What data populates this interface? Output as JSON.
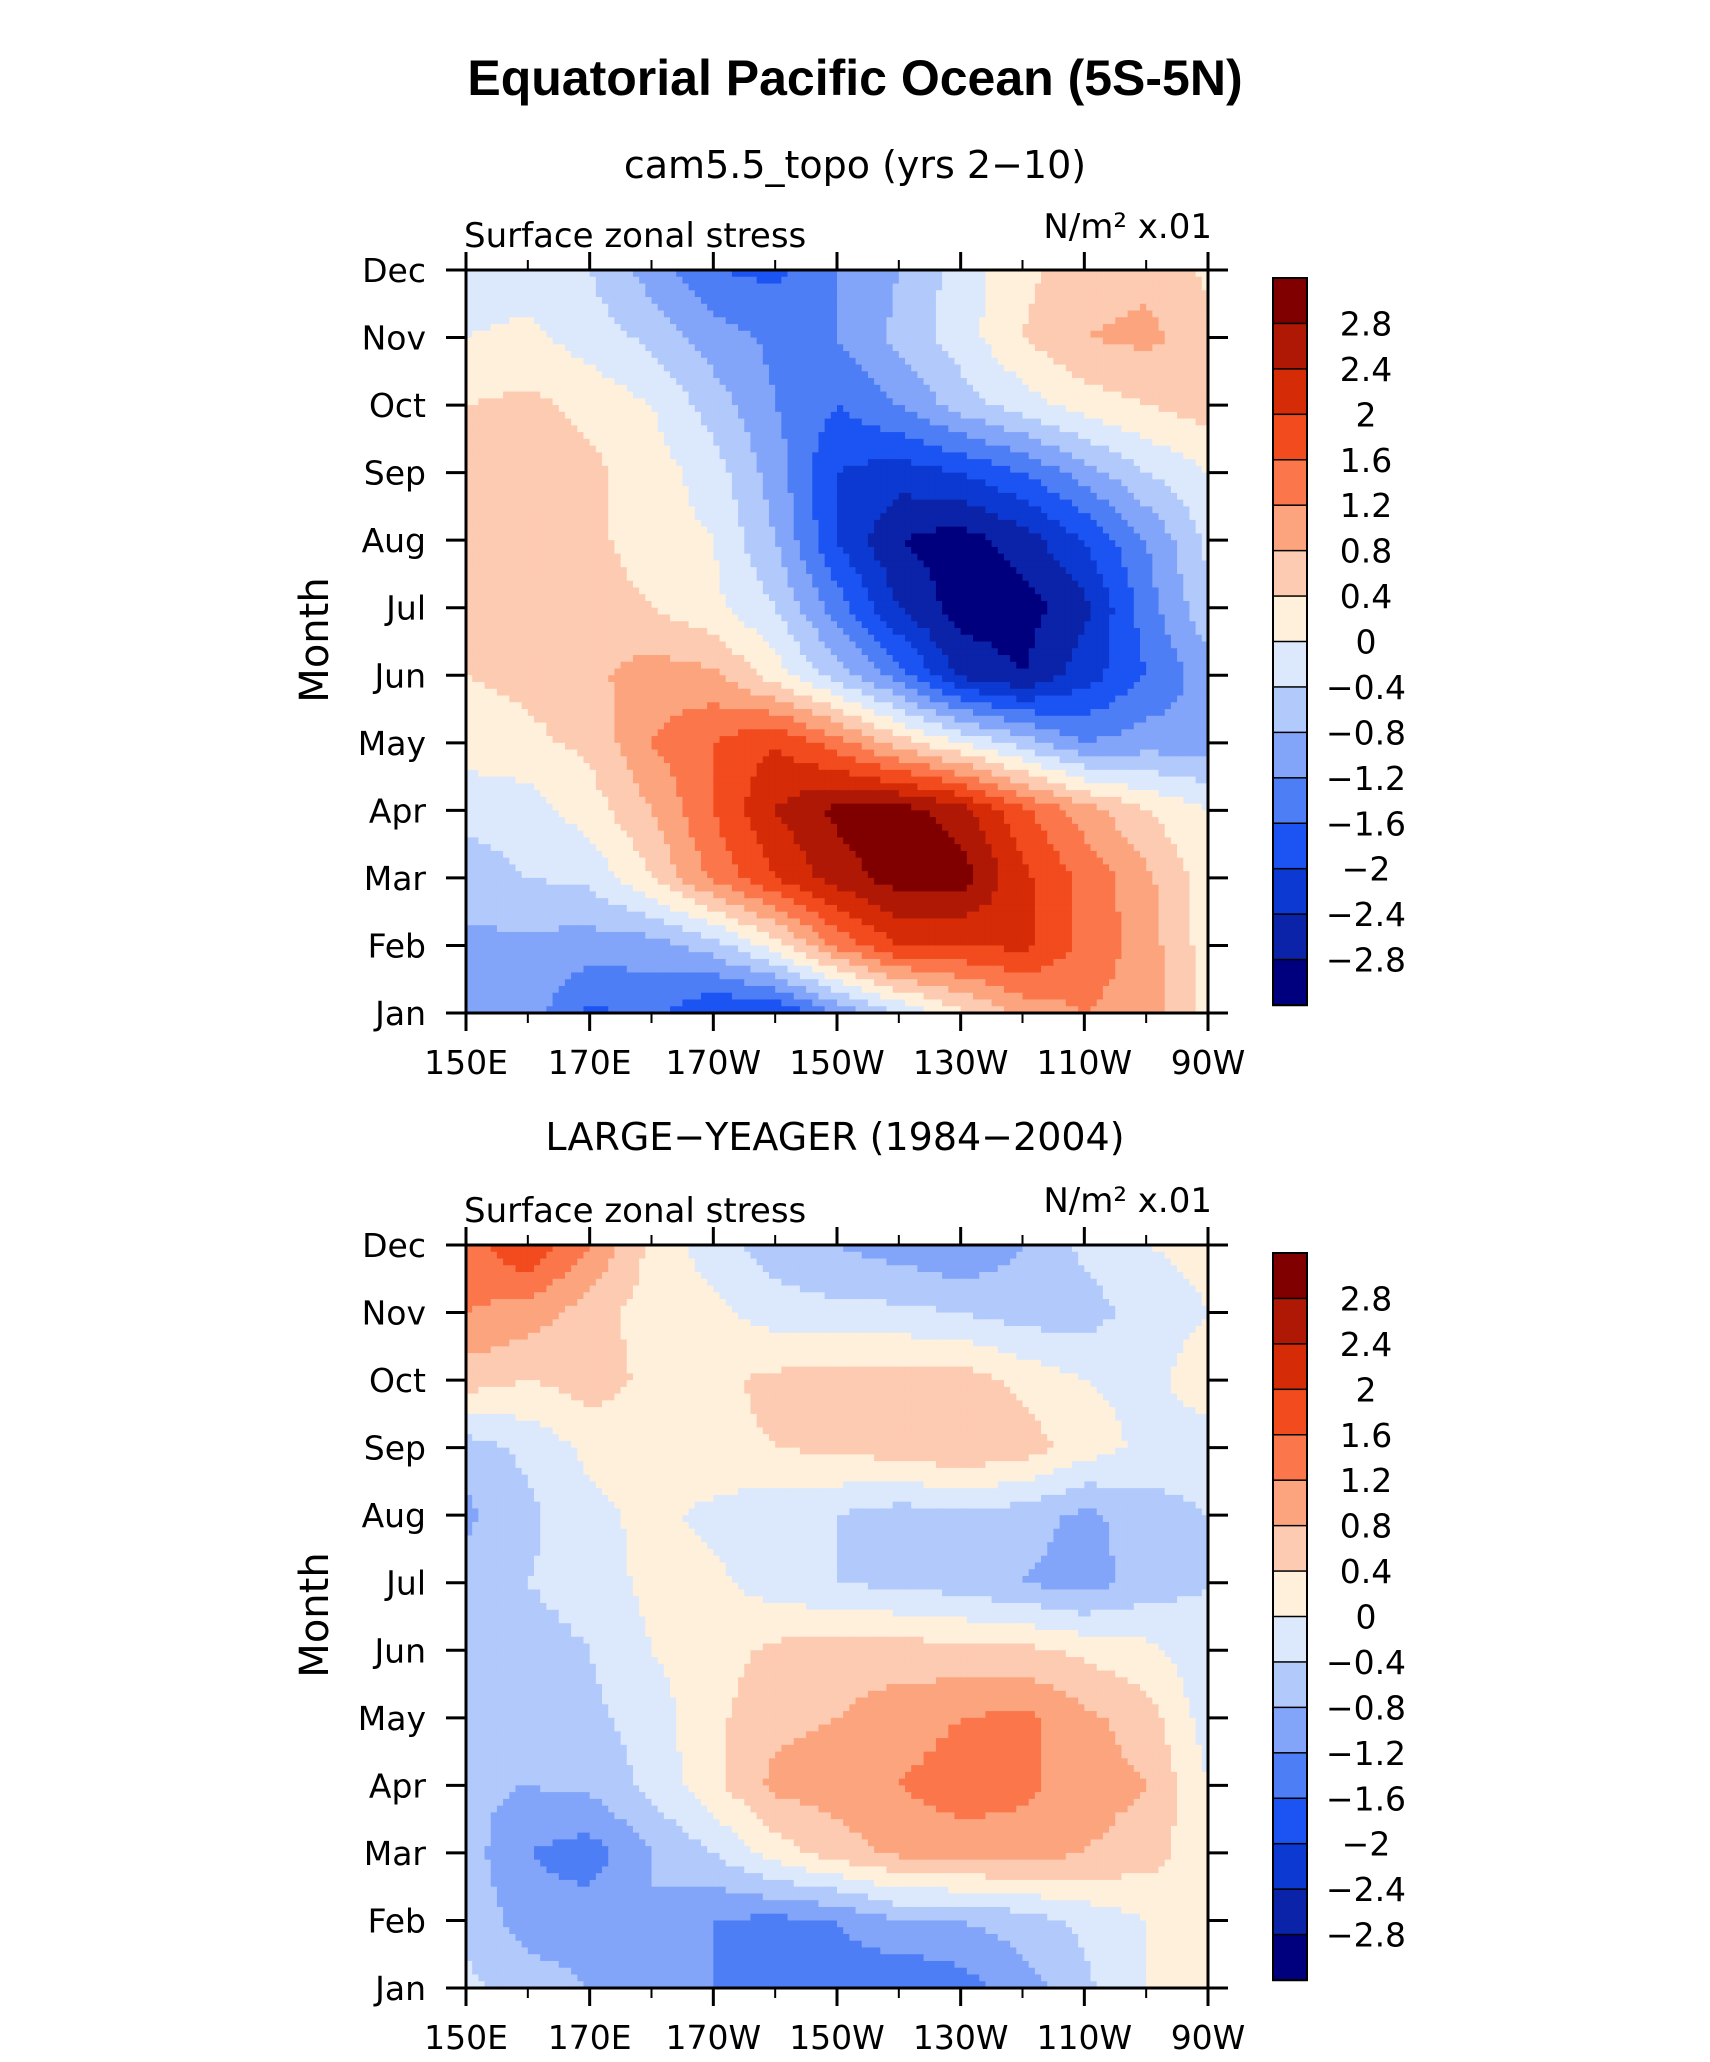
{
  "figure_title": "Equatorial Pacific Ocean (5S-5N)",
  "colorbar": {
    "levels": [
      -2.8,
      -2.4,
      -2,
      -1.6,
      -1.2,
      -0.8,
      -0.4,
      0,
      0.4,
      0.8,
      1.2,
      1.6,
      2,
      2.4,
      2.8
    ],
    "labels": [
      "2.8",
      "2.4",
      "2",
      "1.6",
      "1.2",
      "0.8",
      "0.4",
      "0",
      "−0.4",
      "−0.8",
      "−1.2",
      "−1.6",
      "−2",
      "−2.4",
      "−2.8"
    ],
    "colors": [
      "#00007f",
      "#0a23a8",
      "#0c39d2",
      "#1b54f3",
      "#4e7ef6",
      "#82a5fa",
      "#b2c9fc",
      "#dce9fd",
      "#fff0dc",
      "#fdcbb1",
      "#fca47d",
      "#fb774b",
      "#f24b1e",
      "#d62b07",
      "#b01806",
      "#800000"
    ]
  },
  "chart_data": [
    {
      "type": "heatmap",
      "title": "cam5.5_topo (yrs 2−10)",
      "left_label": "Surface zonal stress",
      "units": "N/m² x.01",
      "ylabel": "Month",
      "xlabel": "",
      "x_ticks": [
        "150E",
        "170E",
        "170W",
        "150W",
        "130W",
        "110W",
        "90W"
      ],
      "y_ticks": [
        "Jan",
        "Feb",
        "Mar",
        "Apr",
        "May",
        "Jun",
        "Jul",
        "Aug",
        "Sep",
        "Oct",
        "Nov",
        "Dec"
      ],
      "x_range_deg_east": [
        150,
        270
      ],
      "x_values_deg_east": [
        150,
        160,
        170,
        180,
        190,
        200,
        210,
        220,
        230,
        240,
        250,
        260,
        270
      ],
      "y_values": [
        "Jan",
        "Feb",
        "Mar",
        "Apr",
        "May",
        "Jun",
        "Jul",
        "Aug",
        "Sep",
        "Oct",
        "Nov",
        "Dec"
      ],
      "z": [
        [
          -1.0,
          -1.0,
          -1.7,
          -1.5,
          -2.0,
          -2.0,
          -1.2,
          -0.4,
          0.3,
          0.9,
          1.2,
          1.0,
          0.2
        ],
        [
          -0.9,
          -0.9,
          -1.0,
          -1.0,
          -0.6,
          0.2,
          1.3,
          2.0,
          2.0,
          2.1,
          1.5,
          1.0,
          0.2
        ],
        [
          -0.6,
          -0.4,
          -0.3,
          0.4,
          1.3,
          2.0,
          2.6,
          3.0,
          3.0,
          2.1,
          1.5,
          0.9,
          0.2
        ],
        [
          -0.3,
          -0.2,
          0.2,
          0.8,
          1.6,
          2.4,
          2.9,
          3.0,
          2.6,
          1.7,
          1.0,
          0.4,
          0.0
        ],
        [
          0.2,
          0.3,
          0.5,
          1.2,
          1.6,
          2.0,
          1.4,
          0.6,
          0.0,
          -0.6,
          -1.2,
          -1.0,
          -1.0
        ],
        [
          0.4,
          0.5,
          0.7,
          1.0,
          0.9,
          0.2,
          -0.6,
          -1.4,
          -2.5,
          -2.8,
          -2.2,
          -1.6,
          -1.0
        ],
        [
          0.5,
          0.6,
          0.6,
          0.4,
          0.1,
          -0.4,
          -1.4,
          -2.4,
          -3.0,
          -3.0,
          -2.5,
          -1.4,
          -0.5
        ],
        [
          0.5,
          0.6,
          0.5,
          0.2,
          0.0,
          -0.8,
          -2.0,
          -2.8,
          -3.0,
          -2.6,
          -2.0,
          -1.2,
          -0.3
        ],
        [
          0.6,
          0.6,
          0.5,
          0.2,
          -0.2,
          -1.0,
          -2.0,
          -2.2,
          -2.0,
          -1.6,
          -1.0,
          -0.4,
          0.0
        ],
        [
          0.4,
          0.5,
          0.3,
          0.0,
          -0.6,
          -1.2,
          -1.6,
          -1.2,
          -0.6,
          -0.2,
          0.2,
          0.4,
          0.6
        ],
        [
          0.0,
          0.1,
          -0.2,
          -0.5,
          -1.0,
          -1.3,
          -1.2,
          -0.7,
          -0.2,
          0.4,
          0.8,
          0.9,
          0.6
        ],
        [
          -0.2,
          -0.2,
          -0.4,
          -1.0,
          -1.6,
          -1.7,
          -1.2,
          -0.8,
          -0.2,
          0.3,
          0.6,
          0.7,
          0.3
        ]
      ]
    },
    {
      "type": "heatmap",
      "title": "LARGE−YEAGER (1984−2004)",
      "left_label": "Surface zonal stress",
      "units": "N/m² x.01",
      "ylabel": "Month",
      "xlabel": "",
      "x_ticks": [
        "150E",
        "170E",
        "170W",
        "150W",
        "130W",
        "110W",
        "90W"
      ],
      "y_ticks": [
        "Jan",
        "Feb",
        "Mar",
        "Apr",
        "May",
        "Jun",
        "Jul",
        "Aug",
        "Sep",
        "Oct",
        "Nov",
        "Dec"
      ],
      "x_range_deg_east": [
        150,
        270
      ],
      "x_values_deg_east": [
        150,
        160,
        170,
        180,
        190,
        200,
        210,
        220,
        230,
        240,
        250,
        260,
        270
      ],
      "y_values": [
        "Jan",
        "Feb",
        "Mar",
        "Apr",
        "May",
        "Jun",
        "Jul",
        "Aug",
        "Sep",
        "Oct",
        "Nov",
        "Dec"
      ],
      "z": [
        [
          -0.3,
          -0.6,
          -0.8,
          -1.0,
          -1.2,
          -1.6,
          -1.4,
          -1.6,
          -1.4,
          -1.0,
          -0.5,
          0.0,
          0.1
        ],
        [
          -0.5,
          -1.0,
          -1.0,
          -0.8,
          -1.2,
          -1.3,
          -1.2,
          -0.8,
          -0.8,
          -0.6,
          -0.3,
          0.0,
          0.2
        ],
        [
          -0.6,
          -1.2,
          -1.4,
          -0.8,
          -0.4,
          0.2,
          0.6,
          0.9,
          1.0,
          1.0,
          0.8,
          0.6,
          0.1
        ],
        [
          -0.7,
          -0.8,
          -0.7,
          -0.3,
          0.3,
          0.9,
          1.0,
          1.2,
          1.4,
          1.3,
          1.0,
          0.8,
          0.0
        ],
        [
          -0.5,
          -0.8,
          -0.5,
          -0.2,
          0.3,
          0.7,
          0.8,
          1.0,
          1.2,
          1.3,
          0.9,
          0.6,
          -0.2
        ],
        [
          -0.4,
          -0.6,
          -0.4,
          0.0,
          0.2,
          0.5,
          0.6,
          0.6,
          0.5,
          0.5,
          0.3,
          0.1,
          -0.3
        ],
        [
          -0.6,
          -0.4,
          -0.2,
          0.1,
          0.1,
          -0.2,
          -0.4,
          -0.5,
          -0.6,
          -0.8,
          -1.0,
          -0.6,
          -0.4
        ],
        [
          -0.9,
          -0.5,
          -0.1,
          0.1,
          -0.1,
          -0.3,
          -0.4,
          -0.6,
          -0.5,
          -0.6,
          -0.9,
          -0.6,
          -0.4
        ],
        [
          -0.6,
          -0.3,
          0.1,
          0.2,
          0.3,
          0.4,
          0.5,
          0.6,
          0.8,
          0.6,
          0.2,
          -0.1,
          -0.2
        ],
        [
          0.6,
          0.4,
          0.6,
          0.3,
          0.3,
          0.5,
          0.6,
          0.6,
          0.6,
          0.3,
          0.0,
          -0.1,
          0.2
        ],
        [
          1.2,
          1.0,
          0.6,
          0.2,
          0.1,
          -0.2,
          -0.3,
          -0.3,
          -0.4,
          -0.6,
          -0.6,
          -0.2,
          0.0
        ],
        [
          1.4,
          2.0,
          1.2,
          0.3,
          -0.2,
          -0.6,
          -0.8,
          -1.0,
          -1.2,
          -0.8,
          -0.3,
          0.0,
          0.1
        ]
      ]
    }
  ]
}
